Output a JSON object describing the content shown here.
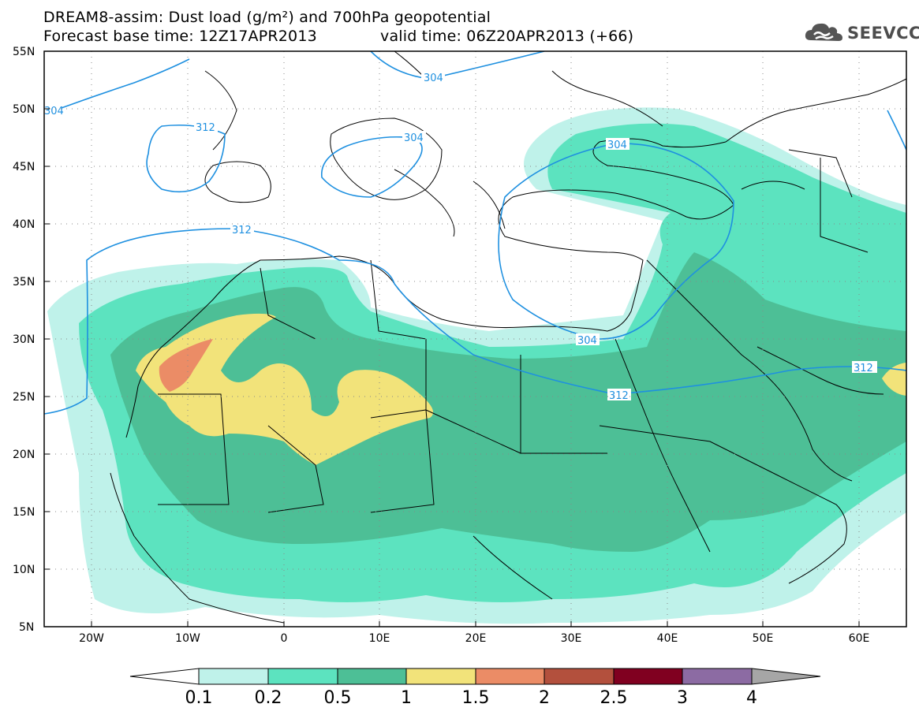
{
  "title": {
    "line1": "DREAM8-assim: Dust load (g/m²) and 700hPa geopotential",
    "line2_left": "Forecast base time: 12Z17APR2013",
    "line2_right": "valid time: 06Z20APR2013 (+66)"
  },
  "logo": {
    "text": "SEEVCCC",
    "icon": "cloud-icon"
  },
  "map": {
    "lat_labels": [
      "55N",
      "50N",
      "45N",
      "40N",
      "35N",
      "30N",
      "25N",
      "20N",
      "15N",
      "10N",
      "5N"
    ],
    "lon_labels": [
      "20W",
      "10W",
      "0",
      "10E",
      "20E",
      "30E",
      "40E",
      "50E",
      "60E"
    ],
    "contour_labels": [
      "304",
      "304",
      "304",
      "304",
      "312",
      "312",
      "312",
      "312",
      "312",
      "304"
    ]
  },
  "colorbar": {
    "labels": [
      "0.1",
      "0.2",
      "0.5",
      "1",
      "1.5",
      "2",
      "2.5",
      "3",
      "4"
    ],
    "colors": [
      "#ffffff",
      "#bff2ea",
      "#5ce3bf",
      "#4dbf96",
      "#f2e37a",
      "#eb8c66",
      "#b3503d",
      "#800020",
      "#8c6ba3",
      "#a6a6a6"
    ]
  },
  "colors": {
    "contour": "#1e90e0",
    "frame": "#000000"
  }
}
